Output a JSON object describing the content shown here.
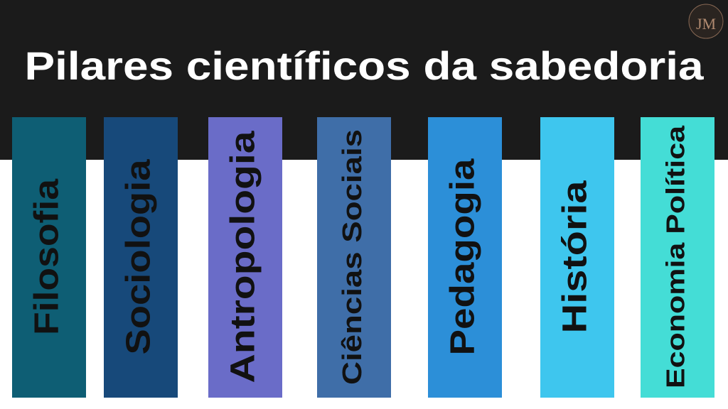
{
  "header": {
    "title": "Pilares científicos da sabedoria",
    "logo": "JM"
  },
  "items": [
    {
      "label": "Filosofia",
      "color": "#0e5e74"
    },
    {
      "label": "Sociologia",
      "color": "#17497a"
    },
    {
      "label": "Antropologia",
      "color": "#6a6cc8"
    },
    {
      "label": "Ciências Sociais",
      "color": "#3f6ea8"
    },
    {
      "label": "Pedagogia",
      "color": "#2c8fd8"
    },
    {
      "label": "História",
      "color": "#3ec6ee"
    },
    {
      "label": "Economia Política",
      "color": "#44ddd6"
    }
  ]
}
